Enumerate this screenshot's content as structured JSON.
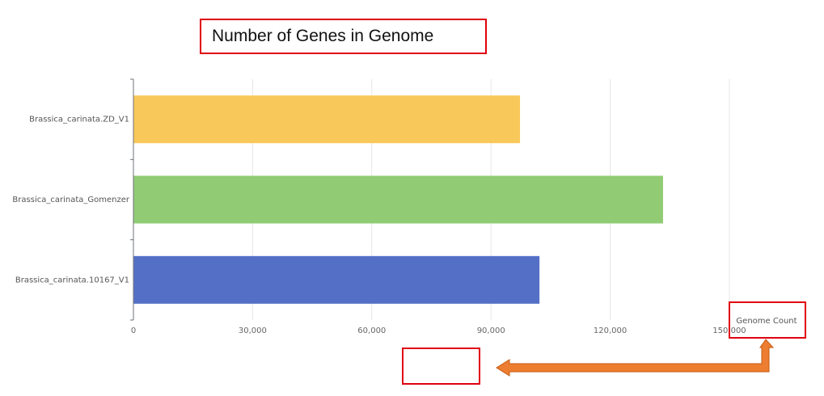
{
  "chart_data": {
    "type": "bar",
    "orientation": "horizontal",
    "title": "Number of Genes in Genome",
    "xlabel": "Genome Count",
    "ylabel": "",
    "categories": [
      "Brassica_carinata.ZD_V1",
      "Brassica_carinata_Gomenzer",
      "Brassica_carinata.10167_V1"
    ],
    "values": [
      97200,
      133200,
      102100
    ],
    "colors": [
      "#f9c85b",
      "#91cc75",
      "#5470c6"
    ],
    "xlim": [
      0,
      150000
    ],
    "x_ticks": [
      0,
      30000,
      60000,
      90000,
      120000,
      150000
    ],
    "x_tick_labels": [
      "0",
      "30,000",
      "60,000",
      "90,000",
      "120,000",
      "150,000"
    ],
    "grid": true,
    "legend": "none"
  },
  "annotations": {
    "highlight_color": "#e0000f",
    "arrow_color": "#ed7d31"
  }
}
